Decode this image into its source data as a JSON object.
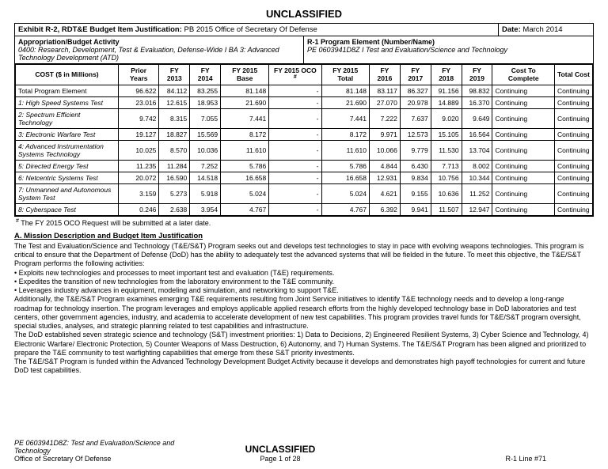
{
  "classification": "UNCLASSIFIED",
  "header": {
    "exhibit_label": "Exhibit R-2, RDT&E Budget Item Justification:",
    "exhibit_value": "PB 2015 Office of Secretary Of Defense",
    "date_label": "Date:",
    "date_value": "March 2014",
    "bud_act_label": "Appropriation/Budget Activity",
    "bud_act_line": "0400: Research, Development, Test & Evaluation, Defense-Wide I BA 3: Advanced Technology Development (ATD)",
    "r1_label": "R-1 Program Element (Number/Name)",
    "r1_line": "PE 0603941D8Z I Test and Evaluation/Science and Technology"
  },
  "table": {
    "columns": [
      "COST ($ in Millions)",
      "Prior Years",
      "FY 2013",
      "FY 2014",
      "FY 2015 Base",
      "FY 2015 OCO #",
      "FY 2015 Total",
      "FY 2016",
      "FY 2017",
      "FY 2018",
      "FY 2019",
      "Cost To Complete",
      "Total Cost"
    ],
    "rows": [
      {
        "label": "Total Program Element",
        "vals": [
          "96.622",
          "84.112",
          "83.255",
          "81.148",
          "-",
          "81.148",
          "83.117",
          "86.327",
          "91.156",
          "98.832",
          "Continuing",
          "Continuing"
        ],
        "italic": false
      },
      {
        "label": "1: High Speed Systems Test",
        "vals": [
          "23.016",
          "12.615",
          "18.953",
          "21.690",
          "-",
          "21.690",
          "27.070",
          "20.978",
          "14.889",
          "16.370",
          "Continuing",
          "Continuing"
        ],
        "italic": true
      },
      {
        "label": "2: Spectrum Efficient Technology",
        "vals": [
          "9.742",
          "8.315",
          "7.055",
          "7.441",
          "-",
          "7.441",
          "7.222",
          "7.637",
          "9.020",
          "9.649",
          "Continuing",
          "Continuing"
        ],
        "italic": true
      },
      {
        "label": "3: Electronic Warfare Test",
        "vals": [
          "19.127",
          "18.827",
          "15.569",
          "8.172",
          "-",
          "8.172",
          "9.971",
          "12.573",
          "15.105",
          "16.564",
          "Continuing",
          "Continuing"
        ],
        "italic": true
      },
      {
        "label": "4: Advanced Instrumentation Systems Technology",
        "vals": [
          "10.025",
          "8.570",
          "10.036",
          "11.610",
          "-",
          "11.610",
          "10.066",
          "9.779",
          "11.530",
          "13.704",
          "Continuing",
          "Continuing"
        ],
        "italic": true
      },
      {
        "label": "5: Directed Energy Test",
        "vals": [
          "11.235",
          "11.284",
          "7.252",
          "5.786",
          "-",
          "5.786",
          "4.844",
          "6.430",
          "7.713",
          "8.002",
          "Continuing",
          "Continuing"
        ],
        "italic": true
      },
      {
        "label": "6: Netcentric Systems Test",
        "vals": [
          "20.072",
          "16.590",
          "14.518",
          "16.658",
          "-",
          "16.658",
          "12.931",
          "9.834",
          "10.756",
          "10.344",
          "Continuing",
          "Continuing"
        ],
        "italic": true
      },
      {
        "label": "7: Unmanned and Autonomous System Test",
        "vals": [
          "3.159",
          "5.273",
          "5.918",
          "5.024",
          "-",
          "5.024",
          "4.621",
          "9.155",
          "10.636",
          "11.252",
          "Continuing",
          "Continuing"
        ],
        "italic": true
      },
      {
        "label": "8: Cyberspace Test",
        "vals": [
          "0.246",
          "2.638",
          "3.954",
          "4.767",
          "-",
          "4.767",
          "6.392",
          "9.941",
          "11.507",
          "12.947",
          "Continuing",
          "Continuing"
        ],
        "italic": true
      }
    ]
  },
  "footnote": "# The FY 2015 OCO Request will be submitted at a later date.",
  "section_title": "A. Mission Description and Budget Item Justification",
  "narrative": {
    "p1": "The Test and Evaluation/Science and Technology (T&E/S&T) Program seeks out and develops test technologies to stay in pace with evolving weapons technologies. This program is critical to ensure that the Department of Defense (DoD) has the ability to adequately test the advanced systems that will be fielded in the future.  To meet this objective, the T&E/S&T Program performs the following activities:",
    "b1": "• Exploits new technologies and processes to meet important test and evaluation (T&E) requirements.",
    "b2": "• Expedites the transition of new technologies from the laboratory environment to the T&E community.",
    "b3": "• Leverages industry advances in equipment, modeling and simulation, and networking to support T&E.",
    "p2": "Additionally, the T&E/S&T Program examines emerging T&E requirements resulting from Joint Service initiatives to identify T&E technology needs and to develop a long-range roadmap for technology insertion.  The program leverages and employs applicable applied research efforts from the highly developed technology base in DoD laboratories and test centers, other government agencies, industry, and academia to accelerate development of new test capabilities.  This program provides travel funds for T&E/S&T program oversight, special studies, analyses, and strategic planning related to test capabilities and infrastructure.",
    "p3": "The DoD established seven strategic science and technology (S&T) investment priorities: 1) Data to Decisions, 2) Engineered Resilient Systems, 3) Cyber Science and Technology, 4) Electronic Warfare/ Electronic Protection, 5) Counter Weapons of Mass Destruction, 6) Autonomy, and 7) Human Systems.  The T&E/S&T Program has been aligned and prioritized to prepare the T&E community to test warfighting capabilities that emerge from these S&T priority investments.",
    "p4": "The T&E/S&T Program is funded within the Advanced Technology Development Budget Activity because it develops and demonstrates high payoff technologies for current and future DoD test capabilities."
  },
  "footer": {
    "left_line1": "PE 0603941D8Z: Test and Evaluation/Science and Technology",
    "left_line2": "Office of Secretary Of Defense",
    "center_page": "Page 1 of 28",
    "right": "R-1 Line #71"
  }
}
